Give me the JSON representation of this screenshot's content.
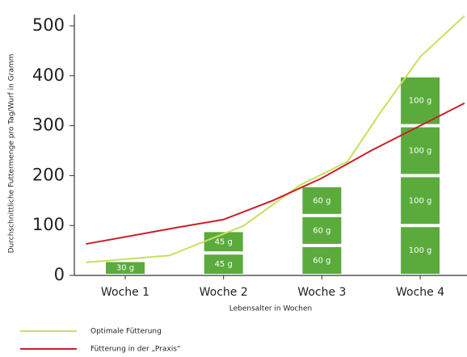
{
  "chart_data": {
    "type": "stacked_blocks_with_lines",
    "y_label": "Durchschnittliche Futtermenge pro Tag/Wurf in Gramm",
    "x_label": "Lebensalter in Wochen",
    "categories": [
      "Woche 1",
      "Woche 2",
      "Woche 3",
      "Woche 4"
    ],
    "stacks": [
      [
        30
      ],
      [
        45,
        45
      ],
      [
        60,
        60,
        60
      ],
      [
        100,
        100,
        100,
        100
      ]
    ],
    "value_labels": [
      [
        "30 g"
      ],
      [
        "45 g",
        "45 g"
      ],
      [
        "60 g",
        "60 g",
        "60 g"
      ],
      [
        "100 g",
        "100 g",
        "100 g",
        "100 g"
      ]
    ],
    "color": "#5aab3c",
    "ylim": [
      0,
      500
    ],
    "yticks": [
      0,
      100,
      200,
      300,
      400,
      500
    ],
    "lines": [
      {
        "name": "Optimale Fütterung",
        "color": "#c9df5c",
        "x": [
          0.6,
          1.45,
          2.2,
          2.77,
          3.26,
          3.59,
          4.0,
          4.45
        ],
        "values": [
          26,
          40,
          99,
          180,
          228,
          325,
          438,
          520
        ]
      },
      {
        "name": "Fütterung in der „Praxis“",
        "color": "#c8202a",
        "x": [
          0.6,
          1.5,
          2.0,
          2.5,
          3.0,
          3.5,
          4.0,
          4.45
        ],
        "values": [
          63,
          95,
          112,
          150,
          195,
          250,
          300,
          345
        ]
      }
    ]
  }
}
